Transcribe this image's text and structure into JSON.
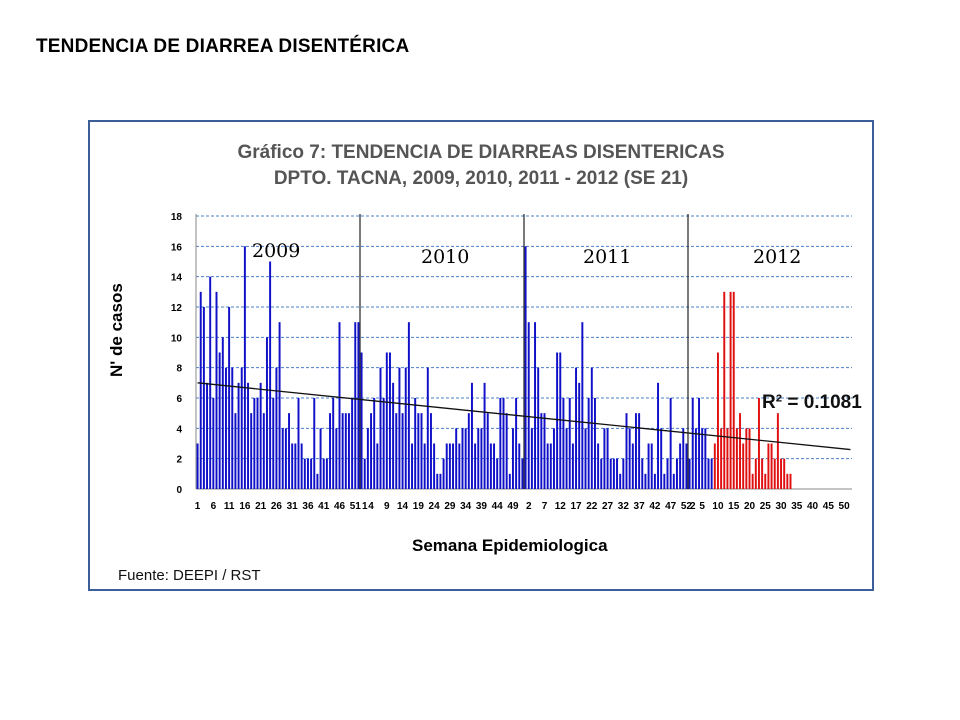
{
  "page_title": "TENDENCIA DE DIARREA DISENTÉRICA",
  "chart_data": {
    "type": "bar",
    "title_line1": "Gráfico 7: TENDENCIA DE DIARREAS DISENTERICAS",
    "title_line2": "DPTO. TACNA, 2009, 2010, 2011 - 2012 (SE 21)",
    "xlabel": "Semana Epidemiologica",
    "ylabel": "N' de casos",
    "ylim": [
      0,
      18
    ],
    "yticks": [
      0,
      2,
      4,
      6,
      8,
      10,
      12,
      14,
      16,
      18
    ],
    "grid": true,
    "source": "Fuente: DEEPI / RST",
    "r_squared_label": "R² = 0.1081",
    "year_labels": [
      "2009",
      "2010",
      "2011",
      "2012"
    ],
    "year_lengths": [
      52,
      52,
      52,
      52
    ],
    "x_tick_labels": [
      "1",
      "6",
      "11",
      "16",
      "21",
      "26",
      "31",
      "36",
      "41",
      "46",
      "51",
      "4",
      "9",
      "14",
      "19",
      "24",
      "29",
      "34",
      "39",
      "44",
      "49",
      "2",
      "7",
      "12",
      "17",
      "22",
      "27",
      "32",
      "37",
      "42",
      "47",
      "52",
      "5",
      "10",
      "15",
      "20",
      "25",
      "30",
      "35",
      "40",
      "45",
      "50"
    ],
    "x_tick_positions": [
      1,
      6,
      11,
      16,
      21,
      26,
      31,
      36,
      41,
      46,
      51,
      56,
      61,
      66,
      71,
      76,
      81,
      86,
      91,
      96,
      101,
      106,
      111,
      116,
      121,
      126,
      131,
      136,
      141,
      146,
      151,
      156,
      161,
      166,
      171,
      176,
      181,
      186,
      191,
      196,
      201,
      206
    ],
    "x_tick_extra": [
      {
        "label": "1",
        "pos": 54
      },
      {
        "label": "2",
        "pos": 158
      }
    ],
    "series": [
      {
        "color": "#1010c8",
        "values": [
          3,
          13,
          12,
          7,
          14,
          6,
          13,
          9,
          10,
          8,
          12,
          8,
          5,
          7,
          8,
          16,
          7,
          5,
          6,
          6,
          7,
          5,
          10,
          15,
          6,
          8,
          11,
          4,
          4,
          5,
          3,
          3,
          6,
          3,
          2,
          2,
          2,
          6,
          1,
          4,
          2,
          2,
          5,
          6,
          4,
          11,
          5,
          5,
          5,
          6,
          11,
          11,
          9,
          2,
          4,
          5,
          6,
          3,
          8,
          6,
          9,
          9,
          7,
          5,
          8,
          5,
          8,
          11,
          3,
          6,
          5,
          5,
          3,
          8,
          5,
          3,
          1,
          1,
          2,
          3,
          3,
          3,
          4,
          3,
          4,
          4,
          5,
          7,
          3,
          4,
          4,
          7,
          5,
          3,
          3,
          2,
          6,
          6,
          5,
          1,
          4,
          6,
          3,
          2,
          16,
          11,
          4,
          11,
          8,
          5,
          5,
          3,
          3,
          4,
          9,
          9,
          6,
          4,
          6,
          3,
          8,
          7,
          11,
          4,
          6,
          8,
          6,
          3,
          2,
          4,
          4,
          2,
          2,
          2,
          1,
          2,
          5,
          4,
          3,
          5,
          5,
          2,
          1,
          3,
          3,
          1,
          7,
          4,
          1,
          2,
          6,
          1,
          2,
          3,
          4,
          3,
          2,
          6,
          4,
          6,
          4,
          4,
          2,
          2
        ]
      },
      {
        "color": "#e01010",
        "values": [
          3,
          9,
          4,
          13,
          4,
          13,
          13,
          4,
          5,
          3,
          4,
          4,
          1,
          2,
          6,
          2,
          1,
          3,
          3,
          2,
          5,
          2,
          2,
          1,
          1
        ]
      }
    ],
    "trendline": {
      "start_x": 1,
      "start_y": 7.0,
      "end_x": 208,
      "end_y": 2.6,
      "color": "#111111"
    },
    "x_domain": [
      0.5,
      208.5
    ]
  }
}
